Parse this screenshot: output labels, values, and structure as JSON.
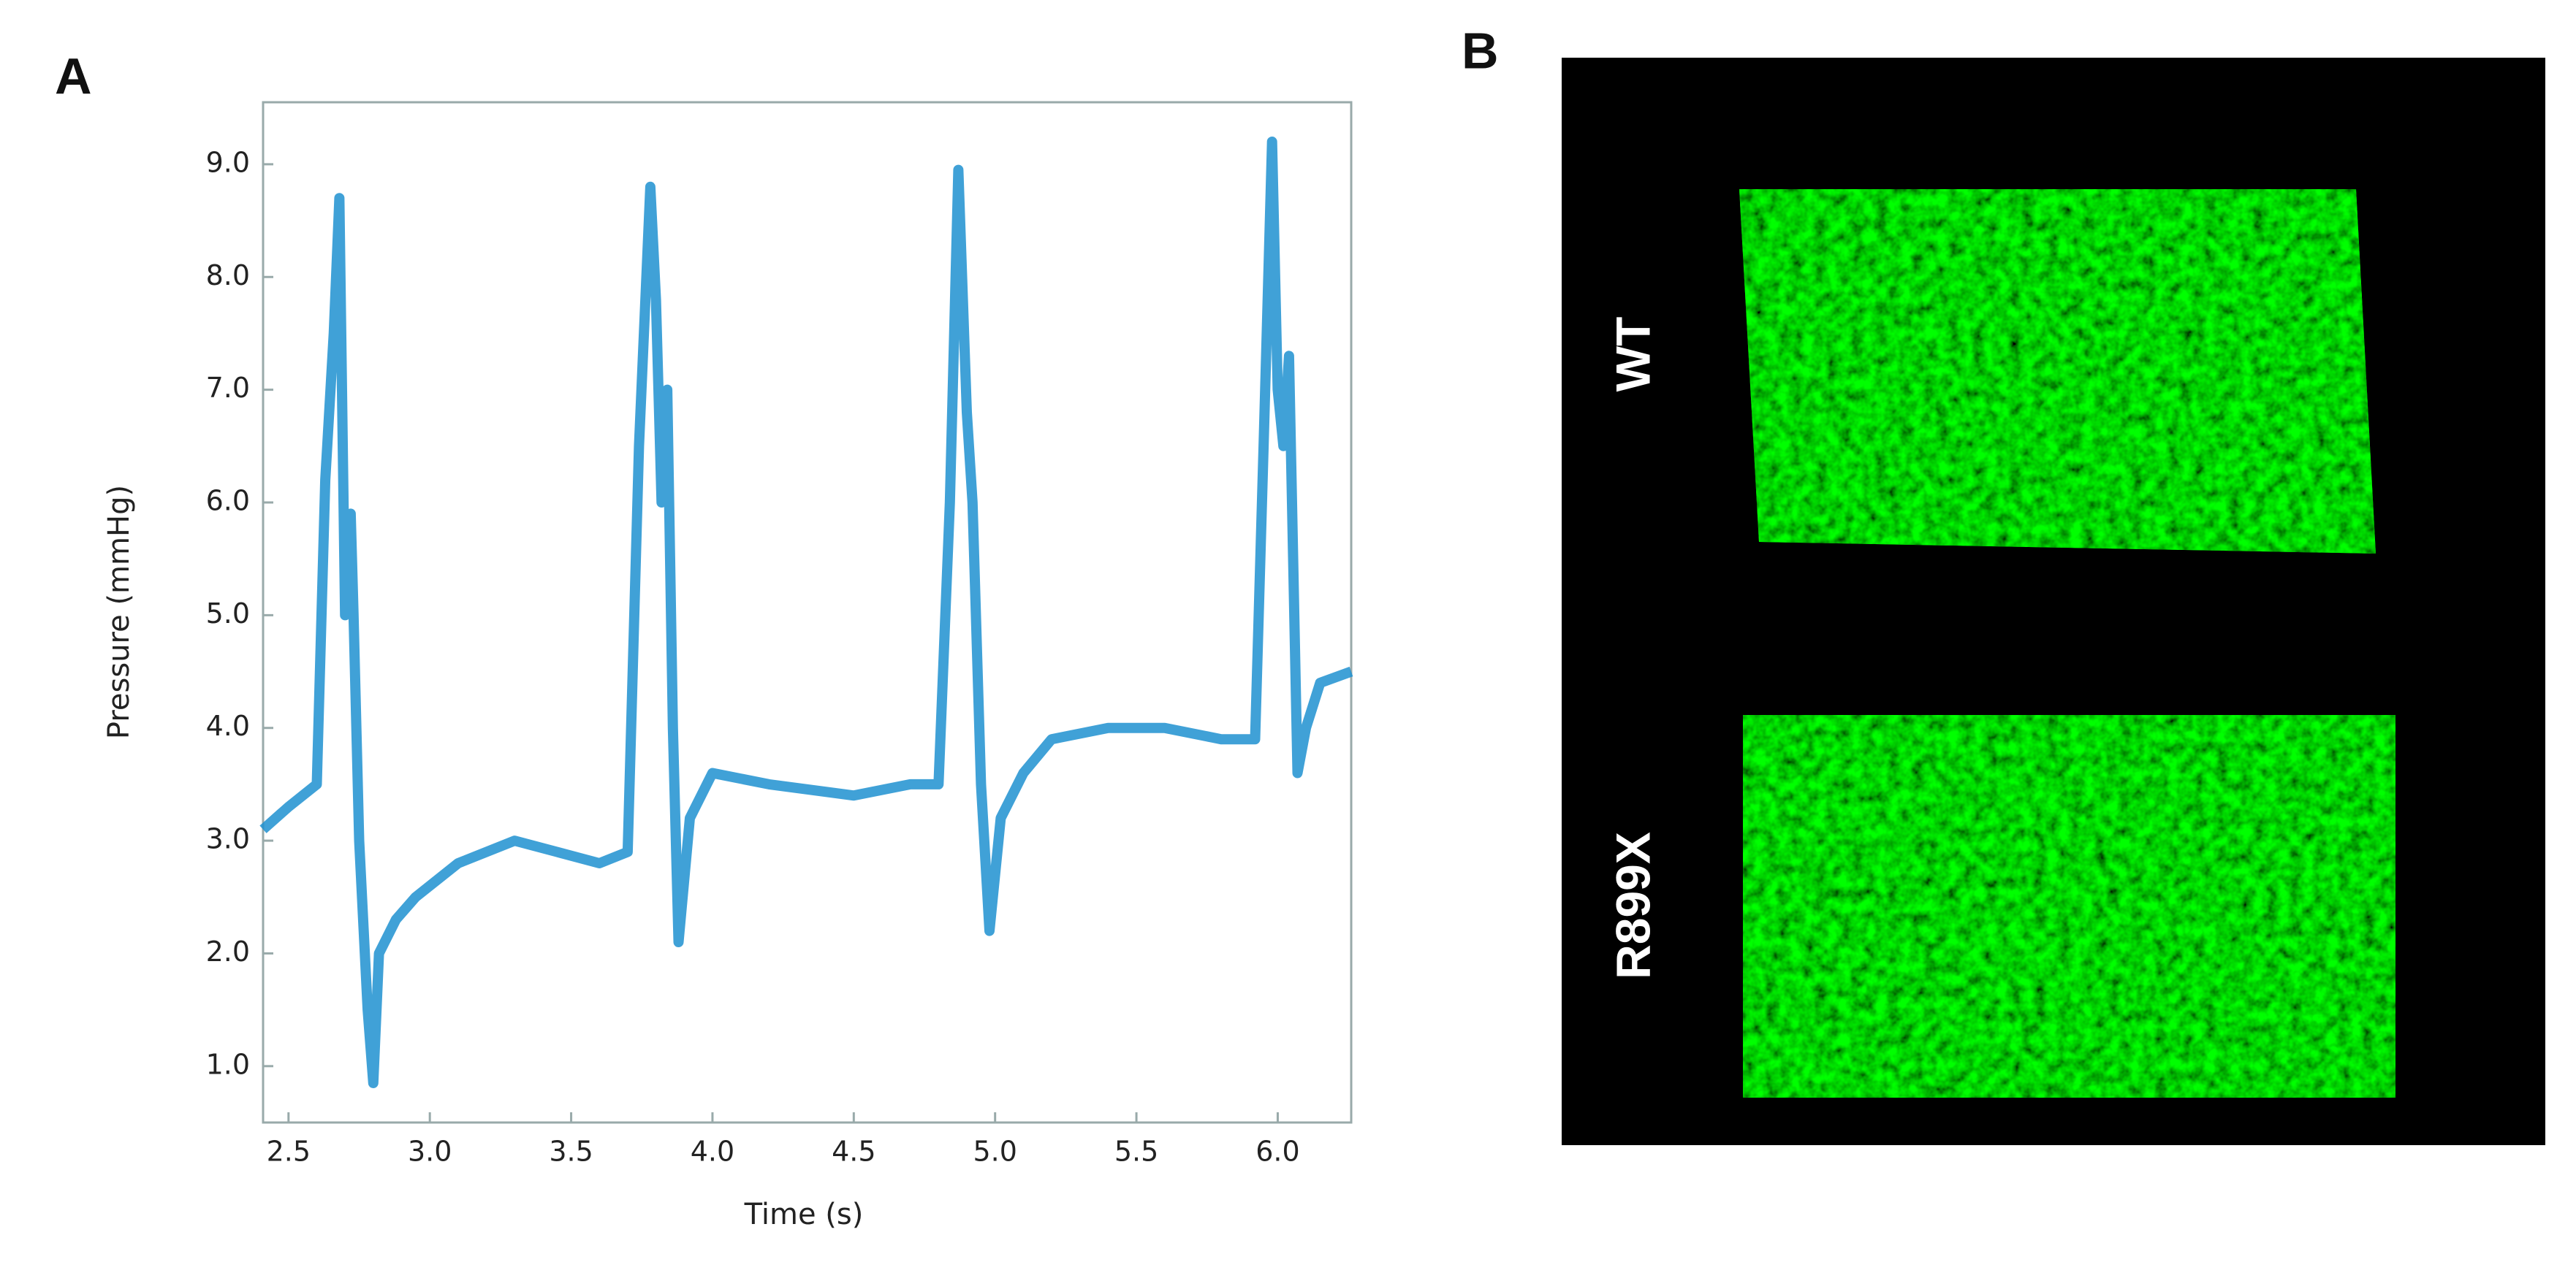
{
  "panel_labels": [
    "A",
    "B"
  ],
  "image_labels": [
    "WT",
    "R899X"
  ],
  "chart_data": {
    "type": "line",
    "xlabel": "Time (s)",
    "ylabel": "Pressure (mmHg)",
    "color": "#1e90d0",
    "xlim": [
      2.41,
      6.26
    ],
    "ylim": [
      0.5,
      9.55
    ],
    "xticks": [
      2.5,
      {
        "value": 3,
        "label": "3.0"
      },
      3.5,
      {
        "value": 4,
        "label": "4.0"
      },
      4.5,
      {
        "value": 5,
        "label": "5.0"
      },
      5.5,
      {
        "value": 6,
        "label": "6.0"
      }
    ],
    "yticks": [
      {
        "value": 1,
        "label": "1.0"
      },
      {
        "value": 2,
        "label": "2.0"
      },
      {
        "value": 3,
        "label": "3.0"
      },
      {
        "value": 4,
        "label": "4.0"
      },
      {
        "value": 5,
        "label": "5.0"
      },
      {
        "value": 6,
        "label": "6.0"
      },
      {
        "value": 7,
        "label": "7.0"
      },
      {
        "value": 8,
        "label": "8.0"
      },
      {
        "value": 9,
        "label": "9.0"
      }
    ],
    "x": [
      2.41,
      2.5,
      2.6,
      2.63,
      2.66,
      2.68,
      2.7,
      2.72,
      2.73,
      2.75,
      2.78,
      2.8,
      2.82,
      2.88,
      2.95,
      3.1,
      3.3,
      3.45,
      3.6,
      3.7,
      3.74,
      3.78,
      3.8,
      3.82,
      3.84,
      3.86,
      3.88,
      3.92,
      4.0,
      4.2,
      4.5,
      4.7,
      4.8,
      4.84,
      4.87,
      4.9,
      4.92,
      4.95,
      4.98,
      5.02,
      5.1,
      5.2,
      5.4,
      5.6,
      5.8,
      5.92,
      5.95,
      5.98,
      6.0,
      6.02,
      6.04,
      6.07,
      6.1,
      6.15,
      6.26
    ],
    "values": [
      3.1,
      3.3,
      3.5,
      6.2,
      7.5,
      8.7,
      5.0,
      5.9,
      5.0,
      3.0,
      1.5,
      0.85,
      2.0,
      2.3,
      2.5,
      2.8,
      3.0,
      2.9,
      2.8,
      2.9,
      6.5,
      8.8,
      7.8,
      6.0,
      7.0,
      4.0,
      2.1,
      3.2,
      3.6,
      3.5,
      3.4,
      3.5,
      3.5,
      6.0,
      8.95,
      6.8,
      6.0,
      3.5,
      2.2,
      3.2,
      3.6,
      3.9,
      4.0,
      4.0,
      3.9,
      3.9,
      6.5,
      9.2,
      7.0,
      6.5,
      7.3,
      3.6,
      4.0,
      4.4,
      4.5
    ]
  }
}
